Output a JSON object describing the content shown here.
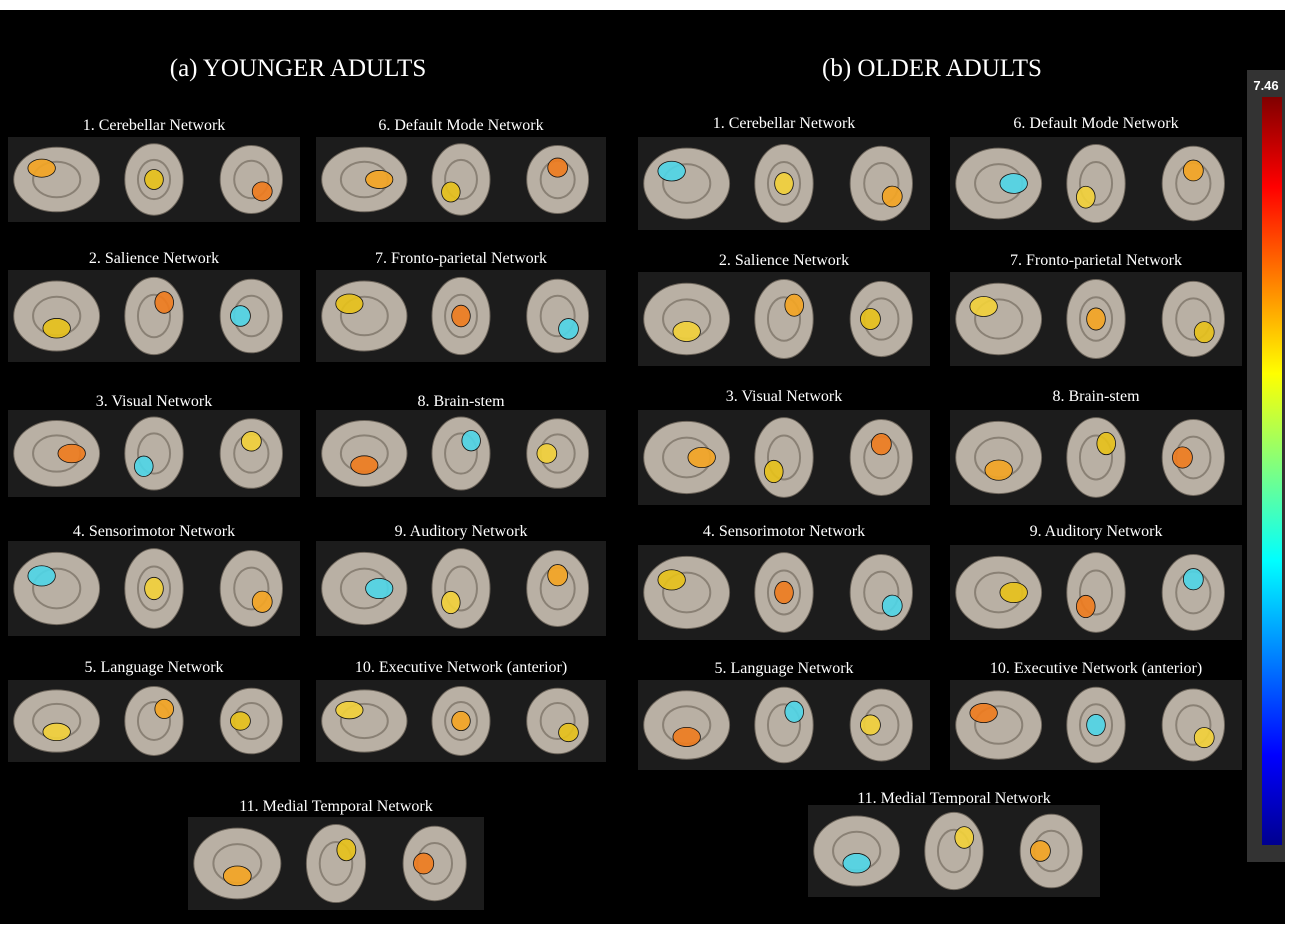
{
  "panels": [
    {
      "title": "(a) YOUNGER ADULTS",
      "networks": [
        "1. Cerebellar Network",
        "2. Salience Network",
        "3. Visual Network",
        "4. Sensorimotor Network",
        "5. Language Network",
        "6. Default Mode Network",
        "7. Fronto-parietal Network",
        "8. Brain-stem",
        "9. Auditory Network",
        "10. Executive Network (anterior)",
        "11. Medial Temporal Network"
      ]
    },
    {
      "title": "(b) OLDER ADULTS",
      "networks": [
        "1. Cerebellar Network",
        "2. Salience Network",
        "3. Visual Network",
        "4. Sensorimotor Network",
        "5. Language Network",
        "6. Default Mode Network",
        "7. Fronto-parietal Network",
        "8. Brain-stem",
        "9. Auditory Network",
        "10. Executive Network (anterior)",
        "11. Medial Temporal Network"
      ]
    }
  ],
  "colorbar": {
    "max": "7.46"
  }
}
